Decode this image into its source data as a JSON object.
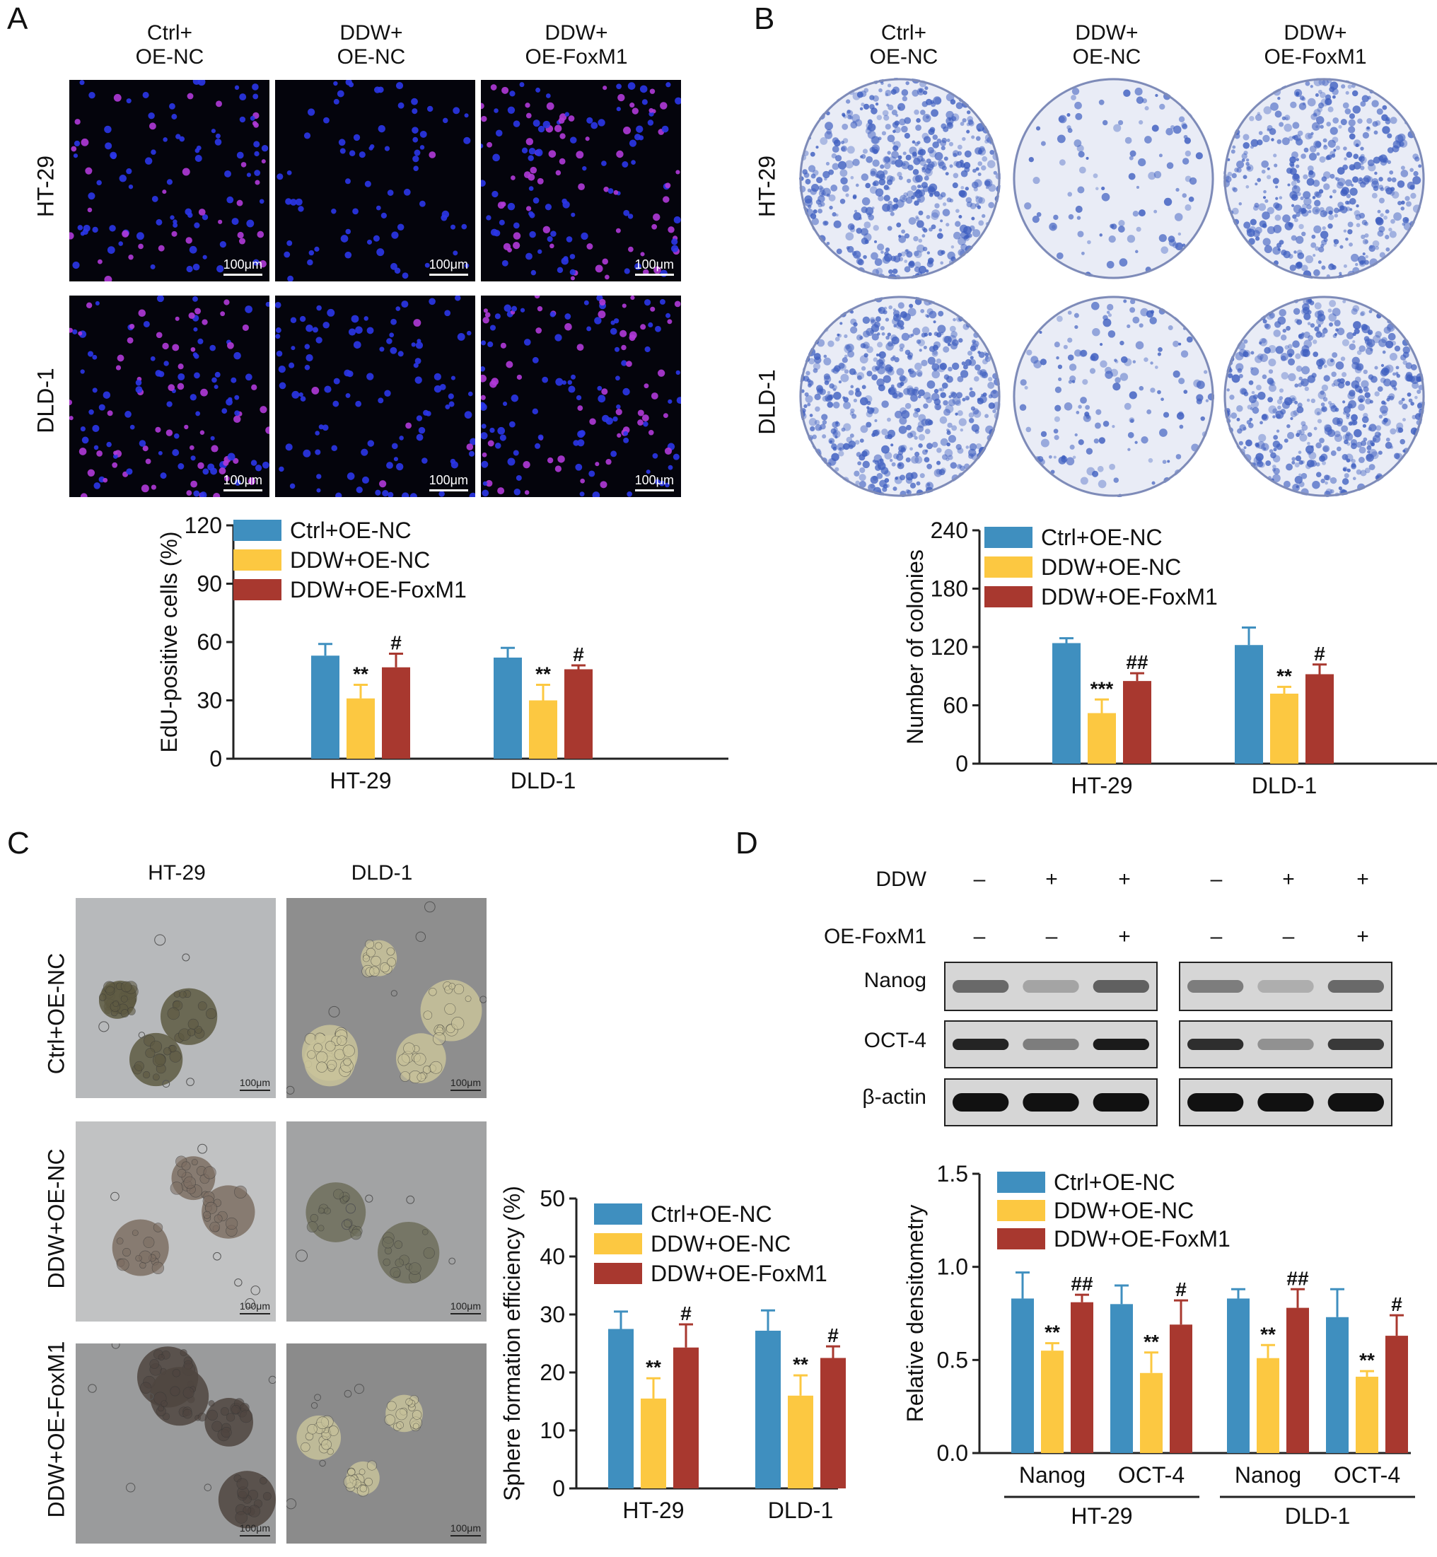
{
  "panel_a": {
    "label": "A",
    "col_headers": [
      [
        "Ctrl+",
        "OE-NC"
      ],
      [
        "DDW+",
        "OE-NC"
      ],
      [
        "DDW+",
        "OE-FoxM1"
      ]
    ],
    "rows": [
      "HT-29",
      "DLD-1"
    ],
    "scale_bar": "100μm"
  },
  "panel_b": {
    "label": "B",
    "col_headers": [
      [
        "Ctrl+",
        "OE-NC"
      ],
      [
        "DDW+",
        "OE-NC"
      ],
      [
        "DDW+",
        "OE-FoxM1"
      ]
    ],
    "rows": [
      "HT-29",
      "DLD-1"
    ]
  },
  "panel_c": {
    "label": "C",
    "col_headers": [
      "HT-29",
      "DLD-1"
    ],
    "rows": [
      "Ctrl+OE-NC",
      "DDW+OE-NC",
      "DDW+OE-FoxM1"
    ],
    "scale_bar": "100μm"
  },
  "panel_d": {
    "label": "D",
    "treat_rows": [
      {
        "name": "DDW",
        "signs": [
          "–",
          "+",
          "+",
          "–",
          "+",
          "+"
        ]
      },
      {
        "name": "OE-FoxM1",
        "signs": [
          "–",
          "–",
          "+",
          "–",
          "–",
          "+"
        ]
      }
    ],
    "blots": [
      "Nanog",
      "OCT-4",
      "β-actin"
    ],
    "group_labels": [
      "HT-29",
      "DLD-1"
    ]
  },
  "colors": {
    "ctrl": "#3f8fbf",
    "ddw": "#fcc841",
    "foxm1": "#a8382f",
    "fluor_bg": "#04040c",
    "dish": "#e9ecf6",
    "stain": "#3f5fc0"
  },
  "chart_data": [
    {
      "id": "chart-a",
      "type": "bar",
      "ylabel": "EdU-positive cells (%)",
      "ylim": [
        0,
        120
      ],
      "yticks": [
        0,
        30,
        60,
        90,
        120
      ],
      "categories": [
        "HT-29",
        "DLD-1"
      ],
      "series": [
        {
          "name": "Ctrl+OE-NC",
          "values": [
            53,
            52
          ],
          "err": [
            6,
            5
          ],
          "marks": [
            "",
            ""
          ]
        },
        {
          "name": "DDW+OE-NC",
          "values": [
            31,
            30
          ],
          "err": [
            7,
            8
          ],
          "marks": [
            "**",
            "**"
          ]
        },
        {
          "name": "DDW+OE-FoxM1",
          "values": [
            47,
            46
          ],
          "err": [
            7,
            2
          ],
          "marks": [
            "#",
            "#"
          ]
        }
      ],
      "legend": "top-left"
    },
    {
      "id": "chart-b",
      "type": "bar",
      "ylabel": "Number of colonies",
      "ylim": [
        0,
        240
      ],
      "yticks": [
        0,
        60,
        120,
        180,
        240
      ],
      "categories": [
        "HT-29",
        "DLD-1"
      ],
      "series": [
        {
          "name": "Ctrl+OE-NC",
          "values": [
            124,
            122
          ],
          "err": [
            5,
            18
          ],
          "marks": [
            "",
            ""
          ]
        },
        {
          "name": "DDW+OE-NC",
          "values": [
            52,
            72
          ],
          "err": [
            14,
            7
          ],
          "marks": [
            "***",
            "**"
          ]
        },
        {
          "name": "DDW+OE-FoxM1",
          "values": [
            85,
            92
          ],
          "err": [
            8,
            10
          ],
          "marks": [
            "##",
            "#"
          ]
        }
      ],
      "legend": "top-left"
    },
    {
      "id": "chart-c",
      "type": "bar",
      "ylabel": "Sphere formation efficiency (%)",
      "ylim": [
        0,
        50
      ],
      "yticks": [
        0,
        10,
        20,
        30,
        40,
        50
      ],
      "categories": [
        "HT-29",
        "DLD-1"
      ],
      "series": [
        {
          "name": "Ctrl+OE-NC",
          "values": [
            27.5,
            27.2
          ],
          "err": [
            3,
            3.5
          ],
          "marks": [
            "",
            ""
          ]
        },
        {
          "name": "DDW+OE-NC",
          "values": [
            15.5,
            16
          ],
          "err": [
            3.5,
            3.5
          ],
          "marks": [
            "**",
            "**"
          ]
        },
        {
          "name": "DDW+OE-FoxM1",
          "values": [
            24.3,
            22.5
          ],
          "err": [
            4,
            2
          ],
          "marks": [
            "#",
            "#"
          ]
        }
      ],
      "legend": "top-left"
    },
    {
      "id": "chart-d",
      "type": "bar",
      "ylabel": "Relative densitometry",
      "ylim": [
        0,
        1.5
      ],
      "yticks": [
        "0.0",
        "0.5",
        "1.0",
        "1.5"
      ],
      "categories": [
        "Nanog",
        "OCT-4",
        "Nanog",
        "OCT-4"
      ],
      "groups": [
        "HT-29",
        "DLD-1"
      ],
      "series": [
        {
          "name": "Ctrl+OE-NC",
          "values": [
            0.83,
            0.8,
            0.83,
            0.73
          ],
          "err": [
            0.14,
            0.1,
            0.05,
            0.15
          ],
          "marks": [
            "",
            "",
            "",
            ""
          ]
        },
        {
          "name": "DDW+OE-NC",
          "values": [
            0.55,
            0.43,
            0.51,
            0.41
          ],
          "err": [
            0.04,
            0.11,
            0.07,
            0.03
          ],
          "marks": [
            "**",
            "**",
            "**",
            "**"
          ]
        },
        {
          "name": "DDW+OE-FoxM1",
          "values": [
            0.81,
            0.69,
            0.78,
            0.63
          ],
          "err": [
            0.04,
            0.13,
            0.1,
            0.11
          ],
          "marks": [
            "##",
            "#",
            "##",
            "#"
          ]
        }
      ],
      "legend": "top-left"
    }
  ]
}
